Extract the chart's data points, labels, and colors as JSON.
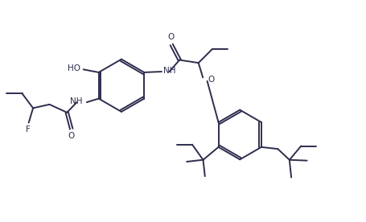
{
  "bg_color": "#ffffff",
  "line_color": "#2d2d4e",
  "line_width": 1.4,
  "fig_width": 4.56,
  "fig_height": 2.76,
  "dpi": 100,
  "xlim": [
    0,
    10
  ],
  "ylim": [
    0,
    6
  ]
}
